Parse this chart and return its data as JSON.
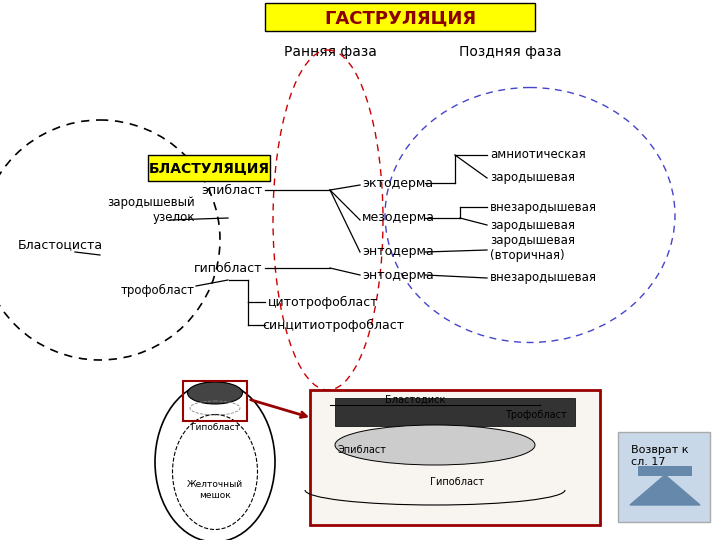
{
  "title": "ГАСТРУЛЯЦИЯ",
  "title_bg": "#FFFF00",
  "bg_color": "#FFFFFF",
  "label_early": "Ранняя фаза",
  "label_late": "Поздняя фаза",
  "label_blastulation": "БЛАСТУЛЯЦИЯ",
  "label_blastocyst": "Бластоциста",
  "label_embryo_node": "зародышевый\nузелок",
  "label_trophoblast": "трофобласт",
  "label_epiblast": "эпибласт",
  "label_hypoblast": "гипобласт",
  "label_cytotrophoblast": "цитотрофобласт",
  "label_syncytiotrophoblast": "синцитиотрофобласт",
  "label_ectoderm": "эктодерма",
  "label_mesoderm": "мезодерма",
  "label_entoderm1": "энтодерма",
  "label_entoderm2": "энтодерма",
  "label_amniotic": "амниотическая",
  "label_zarodysh1": "зародышевая",
  "label_vnezarodysh1": "внезародышевая",
  "label_zarodysh2": "зародышевая",
  "label_zarodysh3": "зародышевая\n(вторичная)",
  "label_vnezarodysh2": "внезародышевая",
  "label_return": "Возврат к\nсл. 17"
}
